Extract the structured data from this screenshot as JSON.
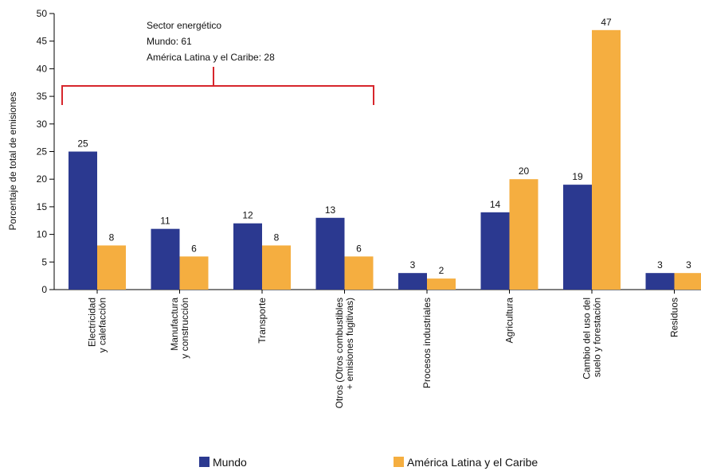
{
  "chart_data": {
    "type": "bar",
    "ylabel": "Porcentaje de total de emisiones",
    "ylim": [
      0,
      50
    ],
    "yticks": [
      0,
      5,
      10,
      15,
      20,
      25,
      30,
      35,
      40,
      45,
      50
    ],
    "grid": false,
    "legend_position": "bottom",
    "categories": [
      [
        "Electricidad",
        "y calefacción"
      ],
      [
        "Manufactura",
        "y construcción"
      ],
      [
        "Transporte"
      ],
      [
        "Otros (Otros combustibles",
        "+ emisiones fugitivas)"
      ],
      [
        "Procesos industriales"
      ],
      [
        "Agricultura"
      ],
      [
        "Cambio del uso del",
        "suelo y forestación"
      ],
      [
        "Residuos"
      ]
    ],
    "series": [
      {
        "name": "Mundo",
        "color": "#2b3990",
        "values": [
          25,
          11,
          12,
          13,
          3,
          14,
          19,
          3
        ]
      },
      {
        "name": "América Latina y el Caribe",
        "color": "#f5ae40",
        "values": [
          8,
          6,
          8,
          6,
          2,
          20,
          47,
          3
        ]
      }
    ],
    "annotation": {
      "lines": [
        "Sector energético",
        "Mundo: 61",
        "América Latina y el Caribe: 28"
      ],
      "bracket_color": "#d7262c",
      "bracket_spans_categories": [
        0,
        3
      ]
    }
  }
}
